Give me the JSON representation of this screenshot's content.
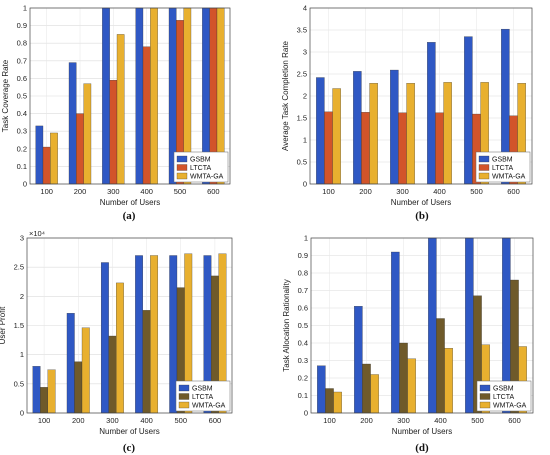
{
  "chart_data": [
    {
      "type": "bar",
      "caption": "(a)",
      "categories": [
        "100",
        "200",
        "300",
        "400",
        "500",
        "600"
      ],
      "series": [
        {
          "name": "GSBM",
          "values": [
            0.33,
            0.69,
            1.0,
            1.0,
            1.0,
            1.0
          ]
        },
        {
          "name": "LTCTA",
          "values": [
            0.21,
            0.4,
            0.59,
            0.78,
            0.93,
            1.0
          ]
        },
        {
          "name": "WMTA-GA",
          "values": [
            0.29,
            0.57,
            0.85,
            1.0,
            1.0,
            1.0
          ]
        }
      ],
      "xlabel": "Number of Users",
      "ylabel": "Task Coverage Rate",
      "ylim": [
        0,
        1
      ],
      "yticks": [
        "0",
        "0.1",
        "0.2",
        "0.3",
        "0.4",
        "0.5",
        "0.6",
        "0.7",
        "0.8",
        "0.9",
        "1"
      ],
      "exponent": "",
      "legend_position": "bottom-right",
      "grid": true,
      "colors": [
        "#2f58c4",
        "#d2542a",
        "#e8b02f"
      ]
    },
    {
      "type": "bar",
      "caption": "(b)",
      "categories": [
        "100",
        "200",
        "300",
        "400",
        "500",
        "600"
      ],
      "series": [
        {
          "name": "GSBM",
          "values": [
            2.42,
            2.56,
            2.59,
            3.22,
            3.35,
            3.52
          ]
        },
        {
          "name": "LTCTA",
          "values": [
            1.64,
            1.63,
            1.62,
            1.62,
            1.59,
            1.55
          ]
        },
        {
          "name": "WMTA-GA",
          "values": [
            2.17,
            2.29,
            2.29,
            2.31,
            2.31,
            2.29
          ]
        }
      ],
      "xlabel": "Number of Users",
      "ylabel": "Average Task Completion Rate",
      "ylim": [
        0,
        4
      ],
      "yticks": [
        "0",
        "0.5",
        "1",
        "1.5",
        "2",
        "2.5",
        "3",
        "3.5",
        "4"
      ],
      "exponent": "",
      "legend_position": "bottom-right",
      "grid": true,
      "colors": [
        "#2f58c4",
        "#d2542a",
        "#e8b02f"
      ]
    },
    {
      "type": "bar",
      "caption": "(c)",
      "categories": [
        "100",
        "200",
        "300",
        "400",
        "500",
        "600"
      ],
      "series": [
        {
          "name": "GSBM",
          "values": [
            0.8,
            1.71,
            2.58,
            2.7,
            2.7,
            2.7
          ]
        },
        {
          "name": "LTCTA",
          "values": [
            0.44,
            0.88,
            1.32,
            1.76,
            2.15,
            2.35
          ]
        },
        {
          "name": "WMTA-GA",
          "values": [
            0.74,
            1.46,
            2.23,
            2.7,
            2.73,
            2.73
          ]
        }
      ],
      "xlabel": "Number of Users",
      "ylabel": "User Profit",
      "ylim": [
        0,
        3
      ],
      "yticks": [
        "0",
        "0.5",
        "1",
        "1.5",
        "2",
        "2.5",
        "3"
      ],
      "exponent": "×10⁴",
      "legend_position": "bottom-right",
      "grid": true,
      "colors": [
        "#2f58c4",
        "#6f5a2a",
        "#e8b02f"
      ]
    },
    {
      "type": "bar",
      "caption": "(d)",
      "categories": [
        "100",
        "200",
        "300",
        "400",
        "500",
        "600"
      ],
      "series": [
        {
          "name": "GSBM",
          "values": [
            0.27,
            0.61,
            0.92,
            1.0,
            1.0,
            1.0
          ]
        },
        {
          "name": "LTCTA",
          "values": [
            0.14,
            0.28,
            0.4,
            0.54,
            0.67,
            0.76
          ]
        },
        {
          "name": "WMTA-GA",
          "values": [
            0.12,
            0.22,
            0.31,
            0.37,
            0.39,
            0.38
          ]
        }
      ],
      "xlabel": "Number of Users",
      "ylabel": "Task Allocation Rationality",
      "ylim": [
        0,
        1
      ],
      "yticks": [
        "0",
        "0.1",
        "0.2",
        "0.3",
        "0.4",
        "0.5",
        "0.6",
        "0.7",
        "0.8",
        "0.9",
        "1"
      ],
      "exponent": "",
      "legend_position": "bottom-right",
      "grid": true,
      "colors": [
        "#2f58c4",
        "#6f5a2a",
        "#e8b02f"
      ]
    }
  ]
}
